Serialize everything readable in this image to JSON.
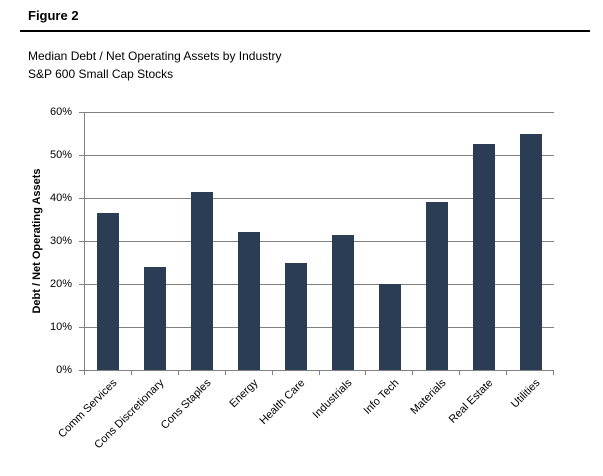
{
  "figure": {
    "label": "Figure 2",
    "title_line1": "Median Debt / Net Operating Assets by Industry",
    "title_line2": "S&P 600 Small Cap Stocks"
  },
  "chart_data": {
    "type": "bar",
    "categories": [
      "Comm Services",
      "Cons Discretionary",
      "Cons Staples",
      "Energy",
      "Health Care",
      "Industrials",
      "Info Tech",
      "Materials",
      "Real Estate",
      "Utilities"
    ],
    "values": [
      36.5,
      24,
      41.5,
      32,
      25,
      31.5,
      20,
      39,
      52.5,
      55
    ],
    "title": "Median Debt / Net Operating Assets by Industry",
    "subtitle": "S&P 600 Small Cap Stocks",
    "xlabel": "",
    "ylabel": "Debt / Net Operating Assets",
    "ylim": [
      0,
      60
    ],
    "ytick_step": 10,
    "ytick_labels": [
      "0%",
      "10%",
      "20%",
      "30%",
      "40%",
      "50%",
      "60%"
    ],
    "grid": true,
    "legend": "none",
    "bar_color": "#2B3C55",
    "grid_color": "#808080",
    "text_color": "#000000"
  }
}
